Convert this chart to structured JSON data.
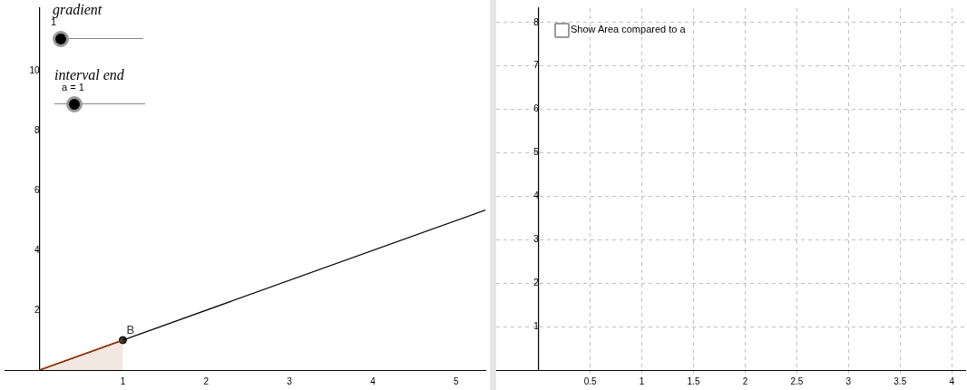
{
  "chart_data": [
    {
      "type": "line",
      "xlim": [
        -0.42,
        5.35
      ],
      "ylim": [
        0,
        12.1
      ],
      "xticks": [
        1,
        2,
        3,
        4,
        5
      ],
      "yticks": [
        2,
        4,
        6,
        8,
        10
      ],
      "grid": false,
      "series": [
        {
          "type": "area",
          "color": "#993300",
          "x": [
            0,
            1
          ],
          "values": [
            0,
            1
          ]
        },
        {
          "type": "line",
          "color": "#000000",
          "x": [
            0,
            5.35
          ],
          "values": [
            0,
            5.35
          ]
        },
        {
          "type": "scatter",
          "color": "#333333",
          "x": [
            1
          ],
          "values": [
            1
          ],
          "marker": "circle"
        }
      ],
      "annotations": [
        {
          "text": "B",
          "x": 1,
          "y": 1
        },
        "gradient",
        "1",
        "interval end",
        "a = 1"
      ]
    },
    {
      "type": "line",
      "xlim": [
        -0.41,
        4.13
      ],
      "ylim": [
        0,
        8.33
      ],
      "xticks": [
        0.5,
        1,
        1.5,
        2,
        2.5,
        3,
        3.5,
        4
      ],
      "yticks": [
        1,
        2,
        3,
        4,
        5,
        6,
        7,
        8
      ],
      "grid": true,
      "annotations": [
        "Show Area compared to a"
      ]
    }
  ]
}
